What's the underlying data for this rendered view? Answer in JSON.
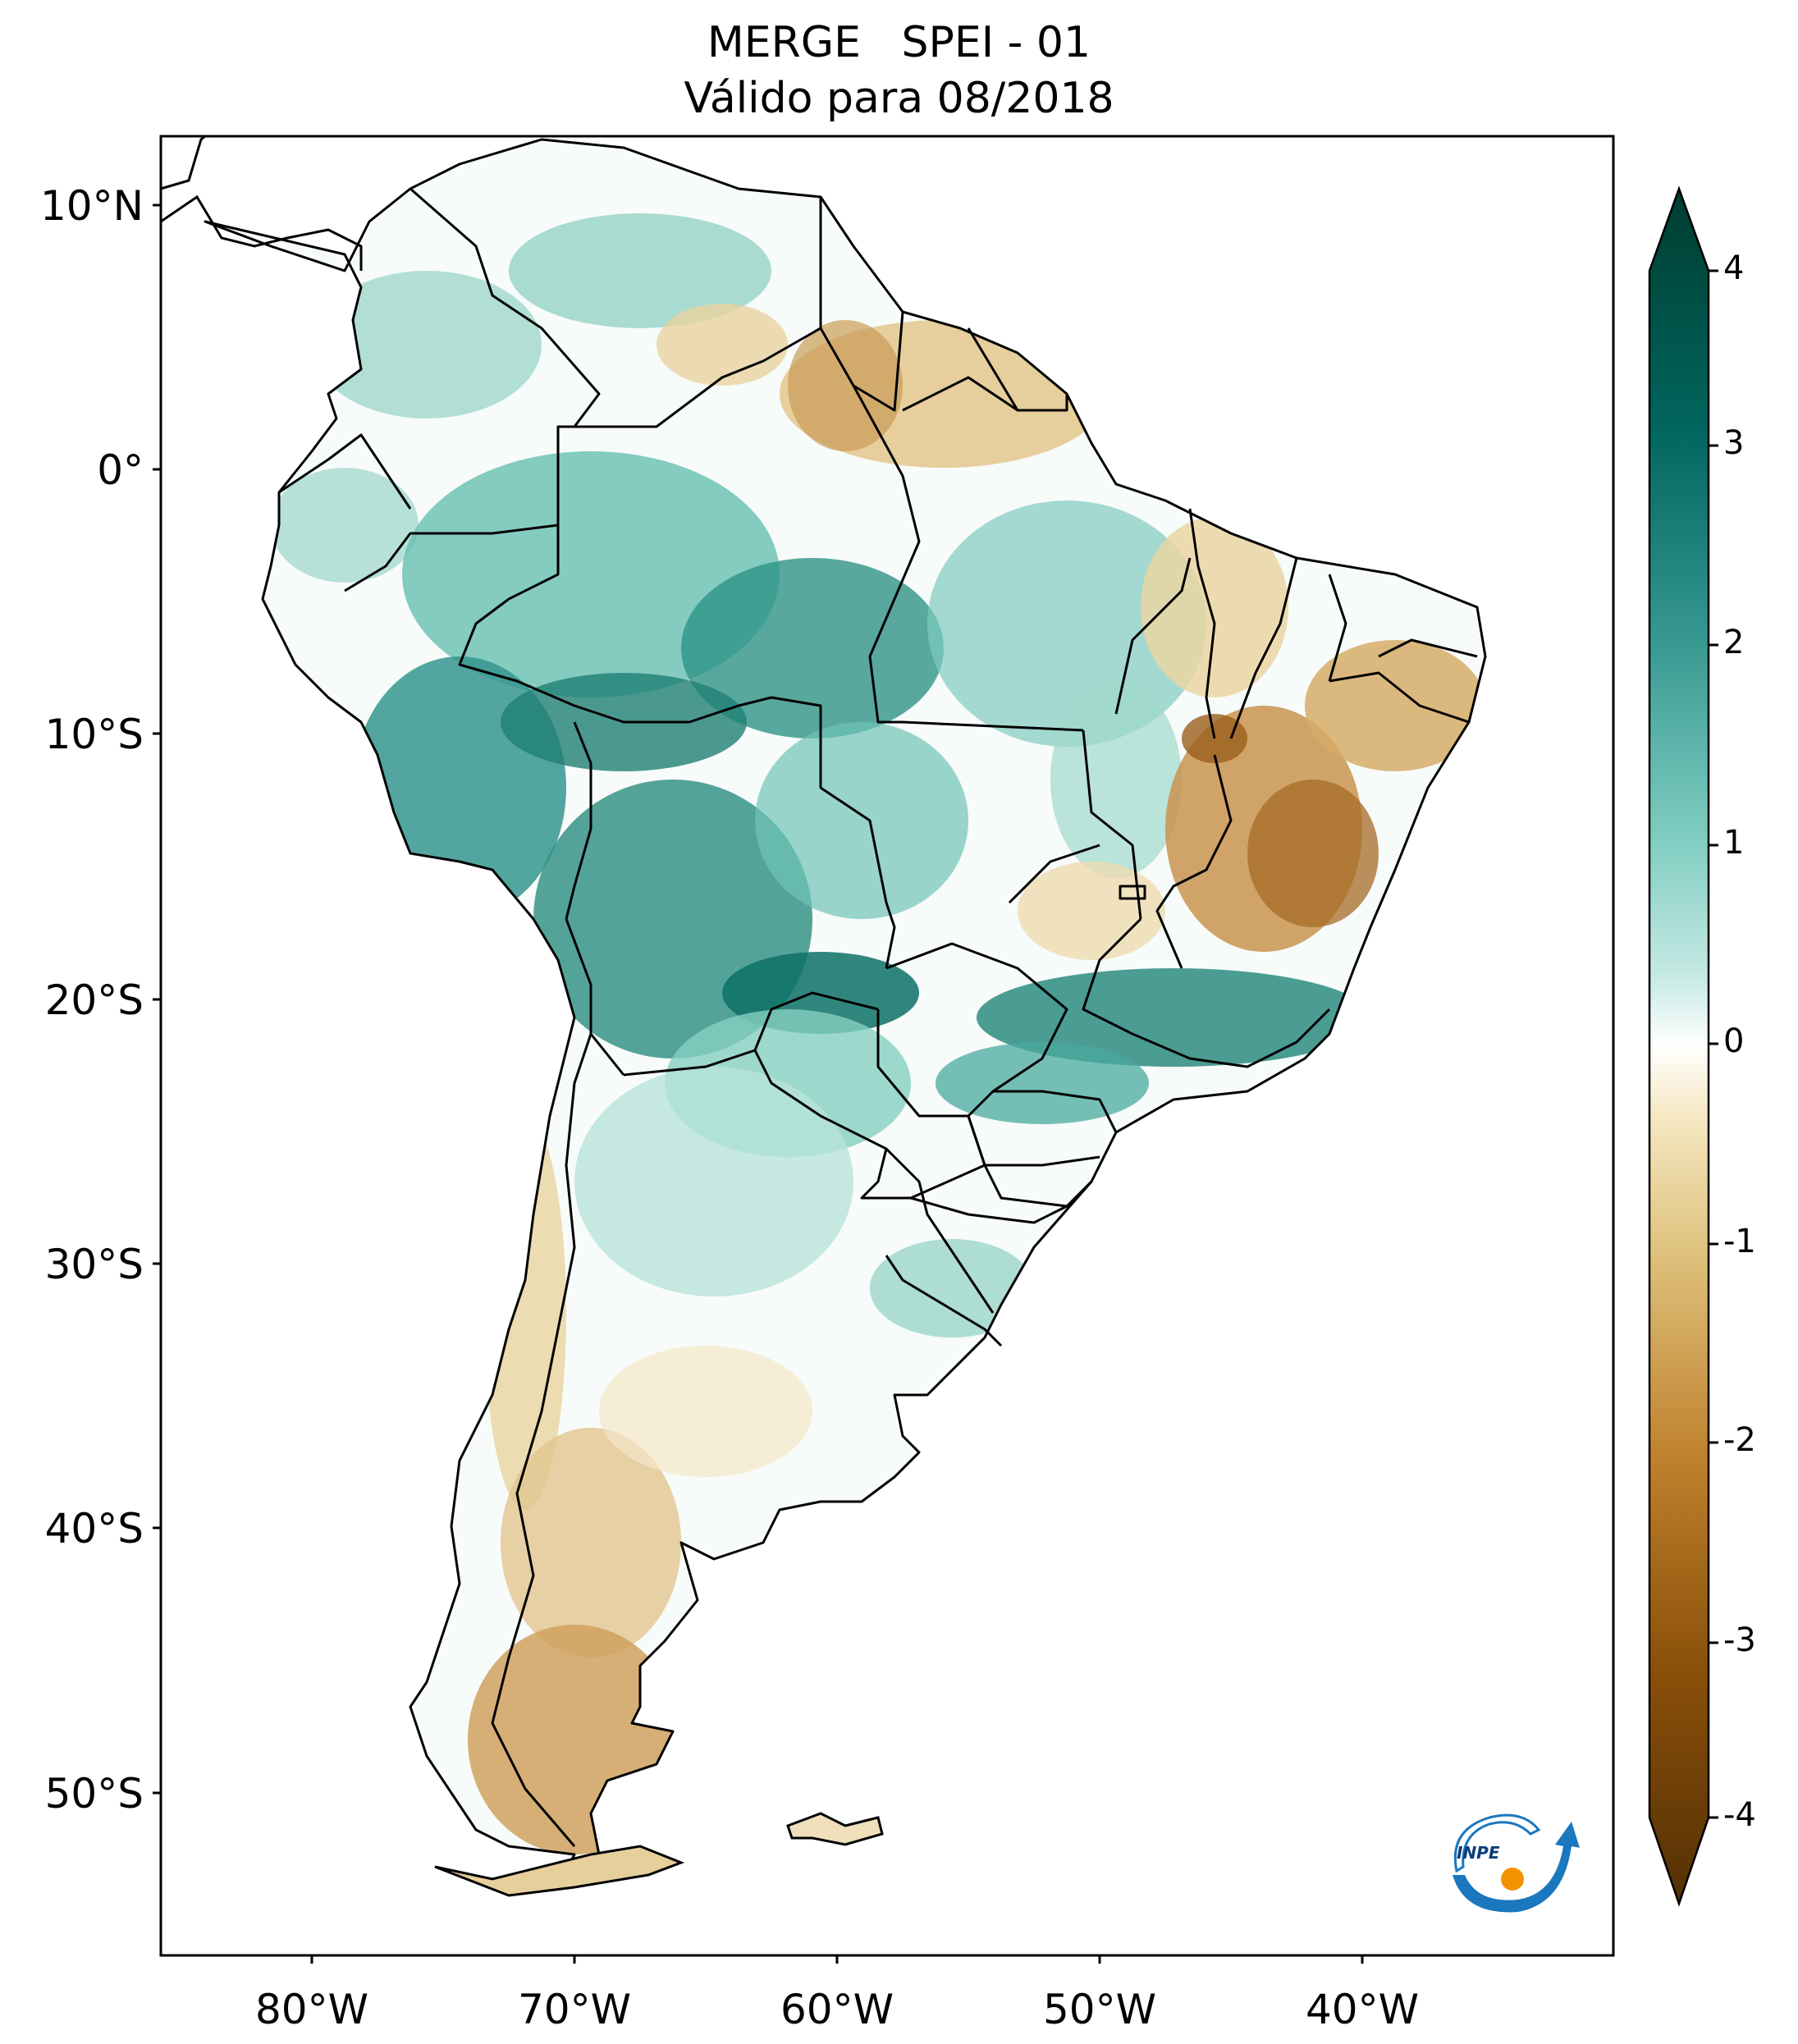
{
  "title": {
    "line1": "MERGE   SPEI - 01",
    "line2": "Válido para 08/2018"
  },
  "lat_labels": [
    "10°N",
    "0°",
    "10°S",
    "20°S",
    "30°S",
    "40°S",
    "50°S"
  ],
  "lon_labels": [
    "80°W",
    "70°W",
    "60°W",
    "50°W",
    "40°W"
  ],
  "colorbar": {
    "ticks": [
      "4",
      "3",
      "2",
      "1",
      "0",
      "-1",
      "-2",
      "-3",
      "-4"
    ],
    "min": -4,
    "max": 4,
    "colors": {
      "dark_green": "#013c30",
      "mid_green": "#117a6c",
      "light_green": "#86cfc1",
      "white": "#ffffff",
      "light_tan": "#eddcae",
      "tan": "#cf9d4f",
      "dark_brown": "#543005"
    }
  },
  "logo": {
    "text": "INPE"
  }
}
